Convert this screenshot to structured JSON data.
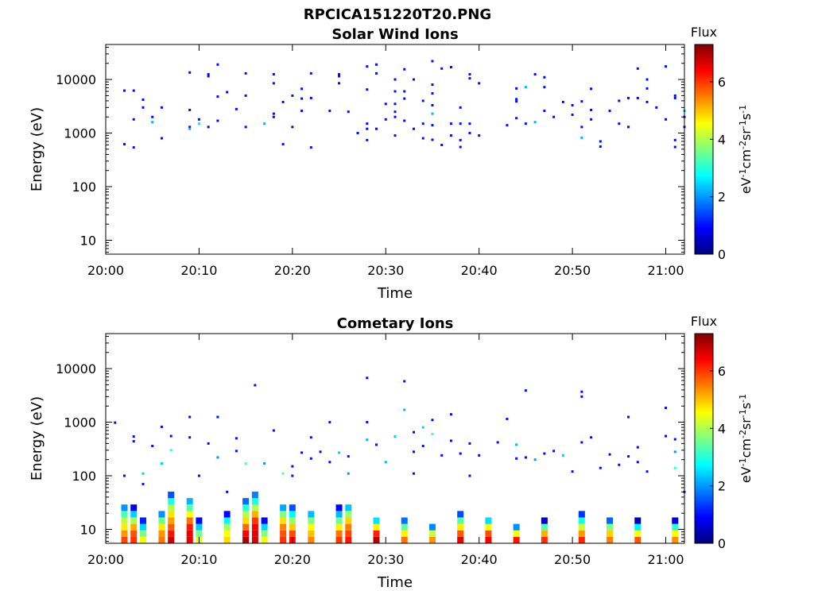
{
  "figure_title": "RPCICA151220T20.PNG",
  "colormap": [
    "#00007f",
    "#0000ff",
    "#007fff",
    "#00ffff",
    "#7fff7f",
    "#ffff00",
    "#ff7f00",
    "#ff0000",
    "#7f0000"
  ],
  "chart_data": [
    {
      "type": "heatmap",
      "title": "Solar Wind Ions",
      "xlabel": "Time",
      "ylabel": "Energy (eV)",
      "x_range": [
        "20:00",
        "21:02"
      ],
      "x_ticks": [
        "20:00",
        "20:10",
        "20:20",
        "20:30",
        "20:40",
        "20:50",
        "21:00"
      ],
      "y_scale": "log",
      "ylim": [
        5.5,
        45000
      ],
      "y_ticks": [
        10,
        100,
        1000,
        10000
      ],
      "y_tick_labels": [
        "10",
        "100",
        "1000",
        "10000"
      ],
      "colorbar": {
        "label": "Flux",
        "unit_label": "eV-1cm-2sr-1s-1",
        "range": [
          0,
          7.3
        ],
        "ticks": [
          "0",
          "2",
          "4",
          "6"
        ]
      },
      "points": [
        [
          "20:02",
          6200,
          1.0
        ],
        [
          "20:02",
          620,
          1.0
        ],
        [
          "20:03",
          1800,
          1.0
        ],
        [
          "20:03",
          6200,
          1.0
        ],
        [
          "20:03",
          540,
          1.0
        ],
        [
          "20:04",
          4200,
          1.0
        ],
        [
          "20:04",
          3000,
          1.0
        ],
        [
          "20:05",
          2000,
          1.0
        ],
        [
          "20:05",
          1600,
          2.2
        ],
        [
          "20:06",
          800,
          1.0
        ],
        [
          "20:06",
          3000,
          1.0
        ],
        [
          "20:09",
          13500,
          1.0
        ],
        [
          "20:09",
          2700,
          1.0
        ],
        [
          "20:09",
          1300,
          1.0
        ],
        [
          "20:09",
          1200,
          2.2
        ],
        [
          "20:10",
          1800,
          1.0
        ],
        [
          "20:10",
          1500,
          2.6
        ],
        [
          "20:11",
          1300,
          1.0
        ],
        [
          "20:11",
          12500,
          1.0
        ],
        [
          "20:11",
          11500,
          1.0
        ],
        [
          "20:12",
          4800,
          1.0
        ],
        [
          "20:12",
          19000,
          1.0
        ],
        [
          "20:12",
          1700,
          1.0
        ],
        [
          "20:13",
          5800,
          1.0
        ],
        [
          "20:14",
          2800,
          1.0
        ],
        [
          "20:15",
          1300,
          1.0
        ],
        [
          "20:15",
          13000,
          1.0
        ],
        [
          "20:15",
          5000,
          1.0
        ],
        [
          "20:17",
          1500,
          2.2
        ],
        [
          "20:18",
          8500,
          1.0
        ],
        [
          "20:18",
          2300,
          1.0
        ],
        [
          "20:18",
          2000,
          1.0
        ],
        [
          "20:18",
          12500,
          1.0
        ],
        [
          "20:19",
          620,
          1.0
        ],
        [
          "20:19",
          3800,
          1.0
        ],
        [
          "20:20",
          1300,
          1.0
        ],
        [
          "20:20",
          5000,
          1.0
        ],
        [
          "20:21",
          6700,
          1.0
        ],
        [
          "20:21",
          4400,
          1.0
        ],
        [
          "20:21",
          2600,
          1.0
        ],
        [
          "20:22",
          13000,
          1.0
        ],
        [
          "20:22",
          4500,
          1.0
        ],
        [
          "20:22",
          540,
          1.0
        ],
        [
          "20:24",
          2600,
          1.0
        ],
        [
          "20:25",
          12500,
          1.0
        ],
        [
          "20:25",
          8500,
          1.0
        ],
        [
          "20:25",
          11500,
          1.0
        ],
        [
          "20:26",
          2500,
          1.0
        ],
        [
          "20:27",
          1000,
          1.0
        ],
        [
          "20:28",
          740,
          1.0
        ],
        [
          "20:28",
          1200,
          1.0
        ],
        [
          "20:28",
          17500,
          1.0
        ],
        [
          "20:28",
          6500,
          1.0
        ],
        [
          "20:28",
          1500,
          1.0
        ],
        [
          "20:29",
          1200,
          1.0
        ],
        [
          "20:29",
          19000,
          1.0
        ],
        [
          "20:29",
          13000,
          1.0
        ],
        [
          "20:30",
          1800,
          1.0
        ],
        [
          "20:30",
          3500,
          1.0
        ],
        [
          "20:31",
          3500,
          1.0
        ],
        [
          "20:31",
          2500,
          1.0
        ],
        [
          "20:31",
          10000,
          1.0
        ],
        [
          "20:31",
          6000,
          1.0
        ],
        [
          "20:31",
          2000,
          1.0
        ],
        [
          "20:31",
          900,
          1.0
        ],
        [
          "20:32",
          15500,
          1.0
        ],
        [
          "20:32",
          6000,
          1.0
        ],
        [
          "20:32",
          4400,
          1.0
        ],
        [
          "20:32",
          1700,
          1.0
        ],
        [
          "20:33",
          10000,
          1.0
        ],
        [
          "20:33",
          1200,
          1.0
        ],
        [
          "20:34",
          4000,
          1.0
        ],
        [
          "20:34",
          1500,
          1.0
        ],
        [
          "20:34",
          800,
          1.0
        ],
        [
          "20:35",
          22000,
          1.0
        ],
        [
          "20:35",
          8000,
          1.0
        ],
        [
          "20:35",
          5500,
          1.0
        ],
        [
          "20:35",
          3300,
          1.0
        ],
        [
          "20:35",
          2300,
          2.2
        ],
        [
          "20:35",
          1400,
          1.0
        ],
        [
          "20:35",
          750,
          1.0
        ],
        [
          "20:36",
          16000,
          1.0
        ],
        [
          "20:36",
          600,
          1.0
        ],
        [
          "20:37",
          1500,
          1.0
        ],
        [
          "20:37",
          17000,
          1.0
        ],
        [
          "20:37",
          900,
          1.0
        ],
        [
          "20:38",
          550,
          1.0
        ],
        [
          "20:38",
          740,
          1.0
        ],
        [
          "20:38",
          1500,
          1.0
        ],
        [
          "20:38",
          3000,
          1.0
        ],
        [
          "20:39",
          10500,
          1.0
        ],
        [
          "20:39",
          12500,
          1.0
        ],
        [
          "20:39",
          1500,
          1.0
        ],
        [
          "20:39",
          1000,
          1.0
        ],
        [
          "20:40",
          8500,
          1.0
        ],
        [
          "20:40",
          900,
          1.0
        ],
        [
          "20:43",
          1400,
          1.0
        ],
        [
          "20:44",
          6800,
          1.0
        ],
        [
          "20:44",
          4300,
          1.0
        ],
        [
          "20:44",
          3900,
          1.0
        ],
        [
          "20:44",
          1900,
          1.0
        ],
        [
          "20:45",
          7200,
          2.2
        ],
        [
          "20:45",
          1500,
          1.0
        ],
        [
          "20:46",
          12500,
          1.0
        ],
        [
          "20:46",
          1600,
          2.2
        ],
        [
          "20:47",
          7200,
          1.0
        ],
        [
          "20:47",
          11000,
          1.0
        ],
        [
          "20:47",
          2600,
          1.0
        ],
        [
          "20:48",
          2000,
          1.0
        ],
        [
          "20:49",
          3800,
          1.0
        ],
        [
          "20:50",
          3300,
          1.0
        ],
        [
          "20:50",
          2200,
          1.0
        ],
        [
          "20:51",
          1300,
          1.0
        ],
        [
          "20:51",
          820,
          2.2
        ],
        [
          "20:51",
          3900,
          1.0
        ],
        [
          "20:52",
          2700,
          1.0
        ],
        [
          "20:52",
          6700,
          1.0
        ],
        [
          "20:52",
          1800,
          1.0
        ],
        [
          "20:53",
          700,
          1.0
        ],
        [
          "20:53",
          560,
          1.0
        ],
        [
          "20:54",
          2600,
          1.0
        ],
        [
          "20:55",
          4000,
          1.0
        ],
        [
          "20:55",
          1500,
          1.0
        ],
        [
          "20:56",
          4500,
          1.0
        ],
        [
          "20:56",
          1300,
          1.0
        ],
        [
          "20:57",
          16000,
          1.0
        ],
        [
          "20:57",
          4500,
          1.0
        ],
        [
          "20:58",
          10000,
          1.0
        ],
        [
          "20:58",
          3800,
          1.0
        ],
        [
          "20:58",
          6800,
          1.0
        ],
        [
          "20:59",
          3000,
          1.0
        ],
        [
          "21:00",
          17500,
          1.0
        ],
        [
          "21:00",
          1800,
          1.0
        ],
        [
          "21:01",
          550,
          1.0
        ],
        [
          "21:01",
          740,
          1.0
        ],
        [
          "21:01",
          5000,
          1.0
        ],
        [
          "21:01",
          4500,
          1.0
        ],
        [
          "21:02",
          2000,
          1.0
        ],
        [
          "21:02",
          1300,
          1.0
        ],
        [
          "21:02",
          2600,
          2.2
        ]
      ]
    },
    {
      "type": "heatmap",
      "title": "Cometary Ions",
      "xlabel": "Time",
      "ylabel": "Energy (eV)",
      "x_range": [
        "20:00",
        "21:02"
      ],
      "x_ticks": [
        "20:00",
        "20:10",
        "20:20",
        "20:30",
        "20:40",
        "20:50",
        "21:00"
      ],
      "y_scale": "log",
      "ylim": [
        5.5,
        45000
      ],
      "y_ticks": [
        10,
        100,
        1000,
        10000
      ],
      "y_tick_labels": [
        "10",
        "100",
        "1000",
        "10000"
      ],
      "colorbar": {
        "label": "Flux",
        "unit_label": "eV-1cm-2sr-1s-1",
        "range": [
          0,
          7.3
        ],
        "ticks": [
          "0",
          "2",
          "4",
          "6"
        ]
      },
      "columns": [
        [
          "20:02",
          8.5,
          6.0
        ],
        [
          "20:03",
          7.5,
          6.2
        ],
        [
          "20:04",
          5.0,
          4.6
        ],
        [
          "20:06",
          7.0,
          5.8
        ],
        [
          "20:07",
          13.0,
          6.7
        ],
        [
          "20:09",
          12.0,
          6.8
        ],
        [
          "20:10",
          5.0,
          4.4
        ],
        [
          "20:13",
          6.0,
          5.2
        ],
        [
          "20:15",
          10.0,
          6.8
        ],
        [
          "20:16",
          14.0,
          7.0
        ],
        [
          "20:17",
          5.0,
          4.4
        ],
        [
          "20:19",
          9.0,
          6.4
        ],
        [
          "20:20",
          8.0,
          6.2
        ],
        [
          "20:22",
          7.0,
          5.8
        ],
        [
          "20:25",
          7.5,
          5.9
        ],
        [
          "20:26",
          9.0,
          6.6
        ],
        [
          "20:29",
          5.5,
          7.0
        ],
        [
          "20:32",
          5.0,
          6.0
        ],
        [
          "20:35",
          4.0,
          5.6
        ],
        [
          "20:38",
          6.0,
          6.9
        ],
        [
          "20:41",
          5.5,
          6.6
        ],
        [
          "20:44",
          4.0,
          6.8
        ],
        [
          "20:47",
          4.5,
          6.4
        ],
        [
          "20:51",
          6.0,
          6.3
        ],
        [
          "20:54",
          5.0,
          5.8
        ],
        [
          "20:57",
          4.5,
          6.0
        ],
        [
          "21:01",
          4.5,
          5.8
        ]
      ],
      "points": [
        [
          "20:01",
          980,
          1.0
        ],
        [
          "20:02",
          100,
          1.0
        ],
        [
          "20:03",
          440,
          1.0
        ],
        [
          "20:03",
          540,
          1.0
        ],
        [
          "20:04",
          110,
          2.4
        ],
        [
          "20:04",
          70,
          1.0
        ],
        [
          "20:05",
          360,
          1.0
        ],
        [
          "20:06",
          820,
          1.0
        ],
        [
          "20:06",
          170,
          2.4
        ],
        [
          "20:07",
          550,
          1.0
        ],
        [
          "20:07",
          300,
          3.0
        ],
        [
          "20:09",
          1250,
          1.0
        ],
        [
          "20:09",
          520,
          1.0
        ],
        [
          "20:10",
          100,
          1.0
        ],
        [
          "20:11",
          400,
          1.0
        ],
        [
          "20:12",
          1250,
          1.0
        ],
        [
          "20:12",
          220,
          2.0
        ],
        [
          "20:13",
          50,
          1.0
        ],
        [
          "20:14",
          500,
          1.0
        ],
        [
          "20:14",
          290,
          1.0
        ],
        [
          "20:15",
          170,
          3.4
        ],
        [
          "20:16",
          4900,
          1.0
        ],
        [
          "20:17",
          170,
          2.0
        ],
        [
          "20:18",
          700,
          1.0
        ],
        [
          "20:19",
          110,
          3.2
        ],
        [
          "20:20",
          150,
          1.0
        ],
        [
          "20:20",
          100,
          1.0
        ],
        [
          "20:21",
          270,
          1.0
        ],
        [
          "20:22",
          210,
          1.0
        ],
        [
          "20:22",
          520,
          1.0
        ],
        [
          "20:23",
          280,
          1.0
        ],
        [
          "20:24",
          1000,
          1.0
        ],
        [
          "20:24",
          180,
          1.0
        ],
        [
          "20:25",
          270,
          2.4
        ],
        [
          "20:26",
          230,
          1.0
        ],
        [
          "20:26",
          110,
          2.0
        ],
        [
          "20:28",
          1000,
          1.0
        ],
        [
          "20:28",
          6700,
          1.0
        ],
        [
          "20:28",
          470,
          2.2
        ],
        [
          "20:29",
          380,
          1.0
        ],
        [
          "20:30",
          180,
          2.2
        ],
        [
          "20:31",
          540,
          2.4
        ],
        [
          "20:32",
          5800,
          1.0
        ],
        [
          "20:32",
          1700,
          2.2
        ],
        [
          "20:33",
          650,
          1.0
        ],
        [
          "20:33",
          280,
          1.0
        ],
        [
          "20:33",
          110,
          1.0
        ],
        [
          "20:34",
          800,
          2.4
        ],
        [
          "20:34",
          360,
          1.0
        ],
        [
          "20:35",
          1100,
          1.0
        ],
        [
          "20:35",
          600,
          3.0
        ],
        [
          "20:36",
          240,
          1.0
        ],
        [
          "20:37",
          1400,
          1.0
        ],
        [
          "20:37",
          450,
          1.0
        ],
        [
          "20:38",
          260,
          1.0
        ],
        [
          "20:39",
          400,
          1.0
        ],
        [
          "20:39",
          100,
          1.0
        ],
        [
          "20:40",
          240,
          1.0
        ],
        [
          "20:42",
          420,
          1.0
        ],
        [
          "20:43",
          1150,
          1.0
        ],
        [
          "20:44",
          380,
          2.2
        ],
        [
          "20:44",
          210,
          1.0
        ],
        [
          "20:45",
          3900,
          1.0
        ],
        [
          "20:45",
          220,
          1.0
        ],
        [
          "20:46",
          200,
          2.0
        ],
        [
          "20:47",
          260,
          1.0
        ],
        [
          "20:48",
          290,
          1.0
        ],
        [
          "20:49",
          240,
          2.4
        ],
        [
          "20:50",
          120,
          1.0
        ],
        [
          "20:51",
          3700,
          1.0
        ],
        [
          "20:51",
          3000,
          1.0
        ],
        [
          "20:51",
          420,
          1.0
        ],
        [
          "20:52",
          520,
          1.0
        ],
        [
          "20:53",
          140,
          1.0
        ],
        [
          "20:54",
          250,
          1.0
        ],
        [
          "20:55",
          160,
          1.0
        ],
        [
          "20:56",
          1250,
          1.0
        ],
        [
          "20:56",
          230,
          1.0
        ],
        [
          "20:57",
          340,
          1.0
        ],
        [
          "20:57",
          180,
          1.0
        ],
        [
          "20:58",
          120,
          1.0
        ],
        [
          "21:00",
          1850,
          1.0
        ],
        [
          "21:00",
          550,
          1.0
        ],
        [
          "21:01",
          480,
          1.0
        ],
        [
          "21:01",
          280,
          2.0
        ],
        [
          "21:01",
          140,
          3.0
        ],
        [
          "21:02",
          50,
          1.0
        ]
      ]
    }
  ]
}
